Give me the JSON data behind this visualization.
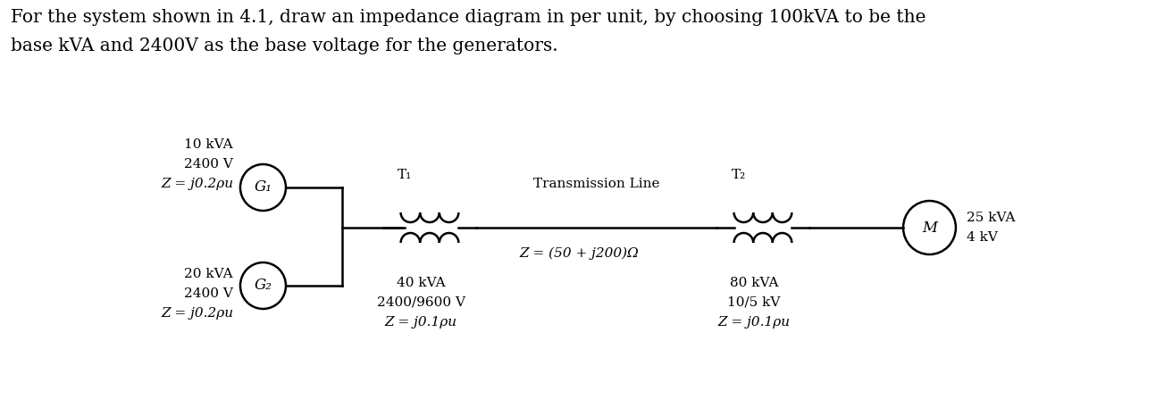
{
  "background_color": "#ffffff",
  "text_color": "#000000",
  "line_color": "#000000",
  "header_text_line1": "For the system shown in 4.1, draw an impedance diagram in per unit, by choosing 100kVA to be the",
  "header_text_line2": "base kVA and 2400V as the base voltage for the generators.",
  "g1_label": "G₁",
  "g1_info": [
    "10 kVA",
    "2400 V",
    "Z = j0.2ρu"
  ],
  "g2_label": "G₂",
  "g2_info": [
    "20 kVA",
    "2400 V",
    "Z = j0.2ρu"
  ],
  "t1_label": "T₁",
  "t1_info": [
    "40 kVA",
    "2400/9600 V",
    "Z = j0.1ρu"
  ],
  "t2_label": "T₂",
  "t2_info": [
    "80 kVA",
    "10/5 kV",
    "Z = j0.1ρu"
  ],
  "tline_label": "Transmission Line",
  "tline_z": "Z = (50 + j200)Ω",
  "motor_label": "M",
  "motor_info": [
    "25 kVA",
    "4 kV"
  ],
  "font_size_header": 14.5,
  "font_size_component": 11
}
